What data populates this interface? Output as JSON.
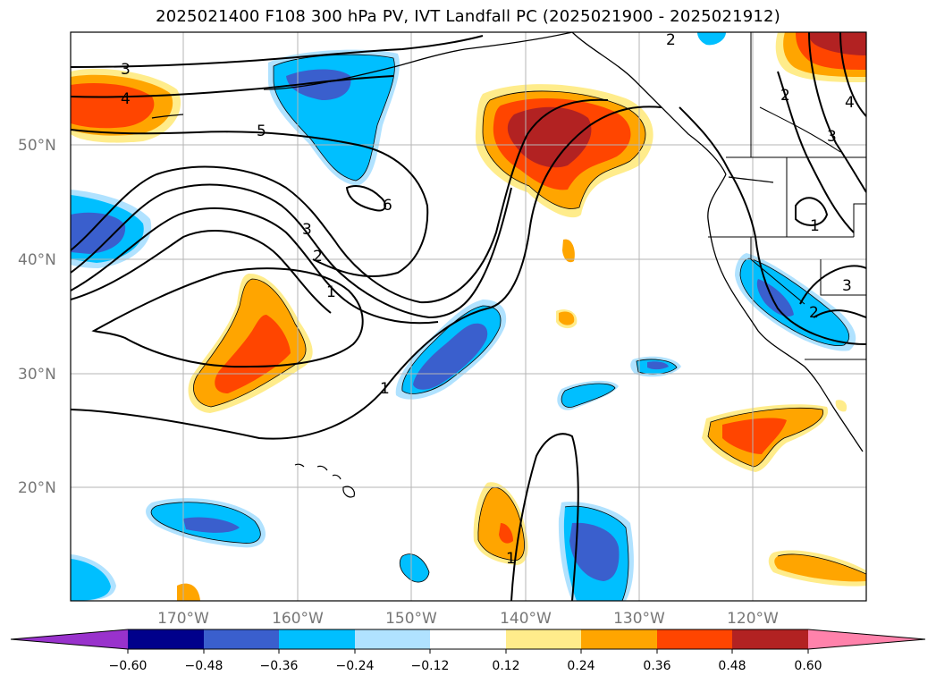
{
  "title": "2025021400 F108 300 hPa PV, IVT Landfall PC (2025021900 - 2025021912)",
  "map": {
    "lat_labels": [
      "50°N",
      "40°N",
      "30°N",
      "20°N"
    ],
    "lon_labels": [
      "170°W",
      "160°W",
      "150°W",
      "140°W",
      "130°W",
      "120°W"
    ],
    "contour_labels": [
      "3",
      "4",
      "5",
      "6",
      "3",
      "2",
      "1",
      "1",
      "2",
      "2",
      "4",
      "3",
      "1",
      "3",
      "2",
      "1"
    ]
  },
  "colorbar": {
    "ticks": [
      "−0.60",
      "−0.48",
      "−0.36",
      "−0.24",
      "−0.12",
      "0.12",
      "0.24",
      "0.36",
      "0.48",
      "0.60"
    ],
    "colors": {
      "neg_extreme": "#9932cc",
      "neg_060": "#00008b",
      "neg_048": "#3a5fcd",
      "neg_036": "#00bfff",
      "neg_024": "#b0e2ff",
      "neutral": "#ffffff",
      "pos_012": "#ffec8b",
      "pos_024": "#ffa500",
      "pos_036": "#ff4500",
      "pos_048": "#b22222",
      "pos_extreme": "#ff82ab"
    }
  }
}
